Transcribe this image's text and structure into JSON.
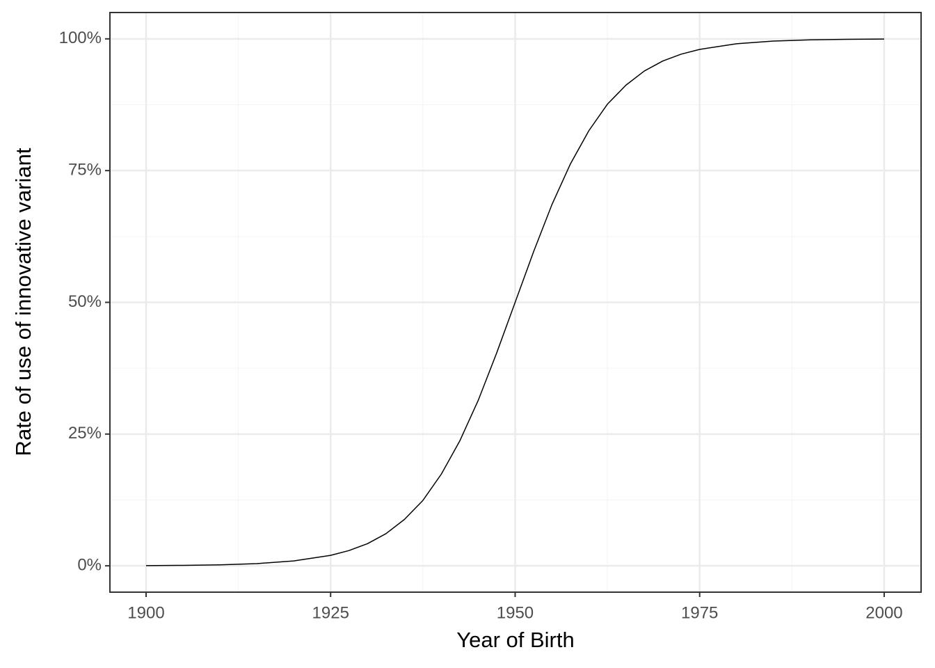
{
  "chart_data": {
    "type": "line",
    "xlabel": "Year of Birth",
    "ylabel": "Rate of use of innovative variant",
    "x": [
      1900,
      1905,
      1910,
      1915,
      1920,
      1925,
      1927.5,
      1930,
      1932.5,
      1935,
      1937.5,
      1940,
      1942.5,
      1945,
      1947.5,
      1950,
      1952.5,
      1955,
      1957.5,
      1960,
      1962.5,
      1965,
      1967.5,
      1970,
      1972.5,
      1975,
      1980,
      1985,
      1990,
      1995,
      2000
    ],
    "values": [
      0.04,
      0.09,
      0.19,
      0.42,
      0.92,
      1.98,
      2.9,
      4.2,
      6.1,
      8.8,
      12.4,
      17.4,
      23.7,
      31.4,
      40.4,
      50,
      59.6,
      68.6,
      76.3,
      82.6,
      87.6,
      91.2,
      93.9,
      95.8,
      97.1,
      98.0,
      99.08,
      99.58,
      99.81,
      99.91,
      99.96
    ],
    "color": "#000000",
    "xlim": [
      1895.1,
      2005
    ],
    "ylim": [
      -5,
      105
    ],
    "xticks": [
      1900,
      1925,
      1950,
      1975,
      2000
    ],
    "yticks": [
      {
        "value": 0,
        "label": "0%"
      },
      {
        "value": 25,
        "label": "25%"
      },
      {
        "value": 50,
        "label": "50%"
      },
      {
        "value": 75,
        "label": "75%"
      },
      {
        "value": 100,
        "label": "100%"
      }
    ],
    "grid": true,
    "minor_grid": true
  }
}
